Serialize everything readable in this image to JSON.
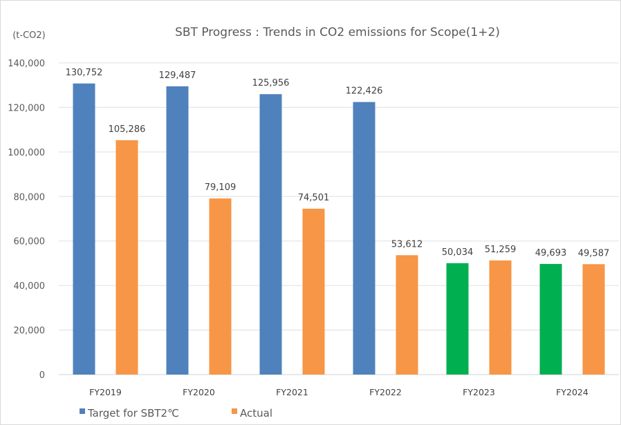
{
  "chart_data": {
    "type": "bar",
    "title": "SBT Progress : Trends in CO2 emissions for Scope(1+2)",
    "ylabel": "(t-CO2)",
    "xlabel": "",
    "ylim": [
      0,
      140000
    ],
    "yticks": [
      0,
      20000,
      40000,
      60000,
      80000,
      100000,
      120000,
      140000
    ],
    "ytick_labels": [
      "0",
      "20,000",
      "40,000",
      "60,000",
      "80,000",
      "100,000",
      "120,000",
      "140,000"
    ],
    "grid": true,
    "legend_position": "bottom-left",
    "categories": [
      "FY2019",
      "FY2020",
      "FY2021",
      "FY2022",
      "FY2023",
      "FY2024"
    ],
    "series": [
      {
        "name": "Target for SBT2℃",
        "color": "#4f81bd",
        "values": [
          130752,
          129487,
          125956,
          122426,
          50034,
          49693
        ],
        "labels": [
          "130,752",
          "129,487",
          "125,956",
          "122,426",
          "50,034",
          "49,693"
        ],
        "point_colors": [
          "#4f81bd",
          "#4f81bd",
          "#4f81bd",
          "#4f81bd",
          "#00b050",
          "#00b050"
        ]
      },
      {
        "name": "Actual",
        "color": "#f79646",
        "values": [
          105286,
          79109,
          74501,
          53612,
          51259,
          49587
        ],
        "labels": [
          "105,286",
          "79,109",
          "74,501",
          "53,612",
          "51,259",
          "49,587"
        ],
        "point_colors": [
          "#f79646",
          "#f79646",
          "#f79646",
          "#f79646",
          "#f79646",
          "#f79646"
        ]
      }
    ]
  }
}
